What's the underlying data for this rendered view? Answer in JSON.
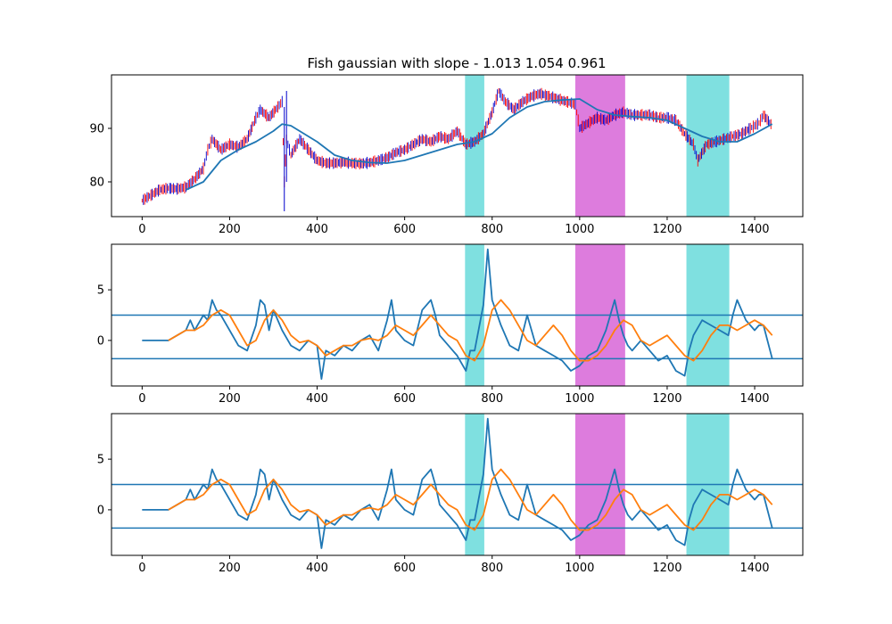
{
  "chart_data": {
    "title": "Fish gaussian with slope - 1.013 1.054 0.961",
    "colors": {
      "series": "#1f77b4",
      "signal": "#ff7f0e",
      "up_candle": "#ff0000",
      "down_candle": "#0000cc",
      "band_cyan": "#7fe0e0",
      "band_magenta": "#dd7cdd"
    },
    "shaded_bands": [
      {
        "x0": 738,
        "x1": 782,
        "color": "cyan"
      },
      {
        "x0": 990,
        "x1": 1104,
        "color": "magenta"
      },
      {
        "x0": 1244,
        "x1": 1342,
        "color": "cyan"
      }
    ],
    "panels": [
      {
        "type": "line",
        "xlim": [
          -70,
          1510
        ],
        "ylim": [
          73.5,
          100
        ],
        "xticks": [
          0,
          200,
          400,
          600,
          800,
          1000,
          1200,
          1400
        ],
        "yticks": [
          80,
          90
        ],
        "series": [
          {
            "role": "price",
            "x": [
              0,
              20,
              40,
              60,
              80,
              100,
              120,
              140,
              150,
              160,
              180,
              200,
              220,
              240,
              260,
              270,
              290,
              310,
              320,
              325,
              330,
              340,
              360,
              380,
              400,
              420,
              440,
              460,
              480,
              500,
              520,
              540,
              560,
              580,
              600,
              620,
              640,
              660,
              680,
              700,
              720,
              740,
              760,
              780,
              800,
              815,
              830,
              850,
              870,
              890,
              910,
              930,
              950,
              970,
              990,
              1000,
              1020,
              1040,
              1060,
              1080,
              1100,
              1120,
              1140,
              1160,
              1180,
              1200,
              1220,
              1240,
              1260,
              1270,
              1290,
              1310,
              1330,
              1350,
              1370,
              1390,
              1400,
              1410,
              1420,
              1440
            ],
            "y": [
              76.5,
              77.5,
              78.5,
              78.8,
              78.7,
              79,
              80.5,
              82.5,
              86,
              88,
              86,
              87,
              86.5,
              88,
              92,
              93.5,
              92,
              94,
              95,
              80,
              88,
              85,
              88,
              86,
              84,
              83.5,
              83.5,
              83.7,
              83.5,
              83.4,
              83.6,
              84,
              84.5,
              85.5,
              86,
              87,
              88,
              87.5,
              88.5,
              88,
              89.5,
              87,
              87.5,
              89,
              93,
              97,
              95,
              93.5,
              95,
              96,
              96.5,
              96,
              95.5,
              95,
              94.5,
              90,
              91,
              92,
              91.5,
              92.5,
              93,
              92.5,
              92.5,
              92.5,
              92,
              92,
              91.5,
              89,
              87,
              84,
              87,
              87.5,
              88,
              88.5,
              89,
              90,
              90.5,
              91,
              92.5,
              90.5
            ]
          },
          {
            "role": "moving-average",
            "x": [
              100,
              140,
              180,
              220,
              260,
              300,
              320,
              340,
              360,
              400,
              440,
              480,
              520,
              560,
              600,
              640,
              680,
              720,
              760,
              800,
              840,
              880,
              920,
              960,
              1000,
              1040,
              1080,
              1120,
              1160,
              1200,
              1240,
              1280,
              1320,
              1360,
              1400,
              1440
            ],
            "y": [
              78.5,
              80,
              84,
              86,
              87.5,
              89.5,
              90.8,
              90.5,
              89.5,
              87.5,
              85,
              84,
              83.6,
              83.5,
              84,
              85,
              86,
              87,
              87.5,
              89,
              92,
              94,
              95,
              95.3,
              95.5,
              93.5,
              92.5,
              92.2,
              92,
              91.5,
              90,
              88.5,
              87.5,
              87.5,
              89,
              90.8
            ]
          }
        ]
      },
      {
        "type": "line",
        "xlim": [
          -70,
          1510
        ],
        "ylim": [
          -4.5,
          9.5
        ],
        "xticks": [
          0,
          200,
          400,
          600,
          800,
          1000,
          1200,
          1400
        ],
        "yticks": [
          0,
          5
        ],
        "hlines": [
          2.5,
          -1.8
        ],
        "series": [
          {
            "role": "fish",
            "x": [
              0,
              60,
              80,
              100,
              110,
              120,
              140,
              150,
              160,
              170,
              180,
              200,
              220,
              240,
              260,
              270,
              280,
              290,
              300,
              320,
              340,
              360,
              380,
              400,
              410,
              420,
              440,
              460,
              480,
              500,
              520,
              540,
              560,
              570,
              580,
              600,
              620,
              640,
              660,
              670,
              680,
              700,
              720,
              740,
              750,
              760,
              780,
              790,
              800,
              820,
              840,
              860,
              880,
              900,
              920,
              940,
              960,
              980,
              1000,
              1020,
              1040,
              1060,
              1080,
              1090,
              1100,
              1110,
              1120,
              1140,
              1160,
              1180,
              1200,
              1220,
              1240,
              1250,
              1260,
              1280,
              1300,
              1320,
              1340,
              1350,
              1360,
              1380,
              1400,
              1410,
              1420,
              1440
            ],
            "y": [
              0,
              0,
              0.5,
              1,
              2,
              1,
              2.5,
              2,
              4,
              3,
              2.5,
              1,
              -0.5,
              -1,
              1.5,
              4,
              3.5,
              1,
              3,
              1,
              -0.5,
              -1,
              0,
              -0.5,
              -3.8,
              -1,
              -1.5,
              -0.5,
              -1,
              0,
              0.5,
              -1,
              2,
              4,
              1,
              0,
              -0.5,
              3,
              4,
              2.5,
              0.5,
              -0.5,
              -1.5,
              -3,
              -1,
              -1,
              3.5,
              9,
              4,
              1.5,
              -0.5,
              -1,
              2.5,
              -0.5,
              -1,
              -1.5,
              -2,
              -3,
              -2.5,
              -1.5,
              -1,
              1,
              4,
              2,
              0.5,
              -0.5,
              -1,
              0,
              -1,
              -2,
              -1.5,
              -3,
              -3.5,
              -1,
              0.5,
              2,
              1.5,
              1,
              0.5,
              2.5,
              4,
              2,
              1,
              1.5,
              1.5,
              -1.8
            ]
          },
          {
            "role": "signal",
            "x": [
              60,
              80,
              100,
              120,
              140,
              160,
              180,
              200,
              220,
              240,
              260,
              280,
              300,
              320,
              340,
              360,
              380,
              400,
              420,
              440,
              460,
              480,
              500,
              520,
              540,
              560,
              580,
              600,
              620,
              640,
              660,
              680,
              700,
              720,
              740,
              760,
              780,
              800,
              820,
              840,
              860,
              880,
              900,
              920,
              940,
              960,
              980,
              1000,
              1020,
              1040,
              1060,
              1080,
              1100,
              1120,
              1140,
              1160,
              1180,
              1200,
              1220,
              1240,
              1260,
              1280,
              1300,
              1320,
              1340,
              1360,
              1380,
              1400,
              1420,
              1440
            ],
            "y": [
              0,
              0.5,
              1,
              1,
              1.5,
              2.5,
              3,
              2.5,
              1,
              -0.5,
              0,
              2,
              3,
              2,
              0.5,
              -0.2,
              0,
              -0.5,
              -1.5,
              -1,
              -0.5,
              -0.5,
              0,
              0.2,
              0,
              0.5,
              1.5,
              1,
              0.5,
              1.5,
              2.5,
              1.5,
              0.5,
              0,
              -1.5,
              -2,
              -0.5,
              3,
              4,
              3,
              1.5,
              0,
              -0.5,
              0.5,
              1.5,
              0.5,
              -1,
              -2,
              -2,
              -1.5,
              -0.5,
              1,
              2,
              1.5,
              0,
              -0.5,
              0,
              0.5,
              -0.5,
              -1.5,
              -2,
              -1,
              0.5,
              1.5,
              1.5,
              1,
              1.5,
              2,
              1.5,
              0.5
            ]
          }
        ]
      },
      {
        "type": "line",
        "xlim": [
          -70,
          1510
        ],
        "ylim": [
          -4.5,
          9.5
        ],
        "xticks": [
          0,
          200,
          400,
          600,
          800,
          1000,
          1200,
          1400
        ],
        "yticks": [
          0,
          5
        ],
        "hlines": [
          2.5,
          -1.8
        ],
        "series": [
          {
            "role": "fish",
            "x": [
              0,
              60,
              80,
              100,
              110,
              120,
              140,
              150,
              160,
              170,
              180,
              200,
              220,
              240,
              260,
              270,
              280,
              290,
              300,
              320,
              340,
              360,
              380,
              400,
              410,
              420,
              440,
              460,
              480,
              500,
              520,
              540,
              560,
              570,
              580,
              600,
              620,
              640,
              660,
              670,
              680,
              700,
              720,
              740,
              750,
              760,
              780,
              790,
              800,
              820,
              840,
              860,
              880,
              900,
              920,
              940,
              960,
              980,
              1000,
              1020,
              1040,
              1060,
              1080,
              1090,
              1100,
              1110,
              1120,
              1140,
              1160,
              1180,
              1200,
              1220,
              1240,
              1250,
              1260,
              1280,
              1300,
              1320,
              1340,
              1350,
              1360,
              1380,
              1400,
              1410,
              1420,
              1440
            ],
            "y": [
              0,
              0,
              0.5,
              1,
              2,
              1,
              2.5,
              2,
              4,
              3,
              2.5,
              1,
              -0.5,
              -1,
              1.5,
              4,
              3.5,
              1,
              3,
              1,
              -0.5,
              -1,
              0,
              -0.5,
              -3.8,
              -1,
              -1.5,
              -0.5,
              -1,
              0,
              0.5,
              -1,
              2,
              4,
              1,
              0,
              -0.5,
              3,
              4,
              2.5,
              0.5,
              -0.5,
              -1.5,
              -3,
              -1,
              -1,
              3.5,
              9,
              4,
              1.5,
              -0.5,
              -1,
              2.5,
              -0.5,
              -1,
              -1.5,
              -2,
              -3,
              -2.5,
              -1.5,
              -1,
              1,
              4,
              2,
              0.5,
              -0.5,
              -1,
              0,
              -1,
              -2,
              -1.5,
              -3,
              -3.5,
              -1,
              0.5,
              2,
              1.5,
              1,
              0.5,
              2.5,
              4,
              2,
              1,
              1.5,
              1.5,
              -1.8
            ]
          },
          {
            "role": "signal",
            "x": [
              60,
              80,
              100,
              120,
              140,
              160,
              180,
              200,
              220,
              240,
              260,
              280,
              300,
              320,
              340,
              360,
              380,
              400,
              420,
              440,
              460,
              480,
              500,
              520,
              540,
              560,
              580,
              600,
              620,
              640,
              660,
              680,
              700,
              720,
              740,
              760,
              780,
              800,
              820,
              840,
              860,
              880,
              900,
              920,
              940,
              960,
              980,
              1000,
              1020,
              1040,
              1060,
              1080,
              1100,
              1120,
              1140,
              1160,
              1180,
              1200,
              1220,
              1240,
              1260,
              1280,
              1300,
              1320,
              1340,
              1360,
              1380,
              1400,
              1420,
              1440
            ],
            "y": [
              0,
              0.5,
              1,
              1,
              1.5,
              2.5,
              3,
              2.5,
              1,
              -0.5,
              0,
              2,
              3,
              2,
              0.5,
              -0.2,
              0,
              -0.5,
              -1.5,
              -1,
              -0.5,
              -0.5,
              0,
              0.2,
              0,
              0.5,
              1.5,
              1,
              0.5,
              1.5,
              2.5,
              1.5,
              0.5,
              0,
              -1.5,
              -2,
              -0.5,
              3,
              4,
              3,
              1.5,
              0,
              -0.5,
              0.5,
              1.5,
              0.5,
              -1,
              -2,
              -2,
              -1.5,
              -0.5,
              1,
              2,
              1.5,
              0,
              -0.5,
              0,
              0.5,
              -0.5,
              -1.5,
              -2,
              -1,
              0.5,
              1.5,
              1.5,
              1,
              1.5,
              2,
              1.5,
              0.5
            ]
          }
        ]
      }
    ]
  }
}
